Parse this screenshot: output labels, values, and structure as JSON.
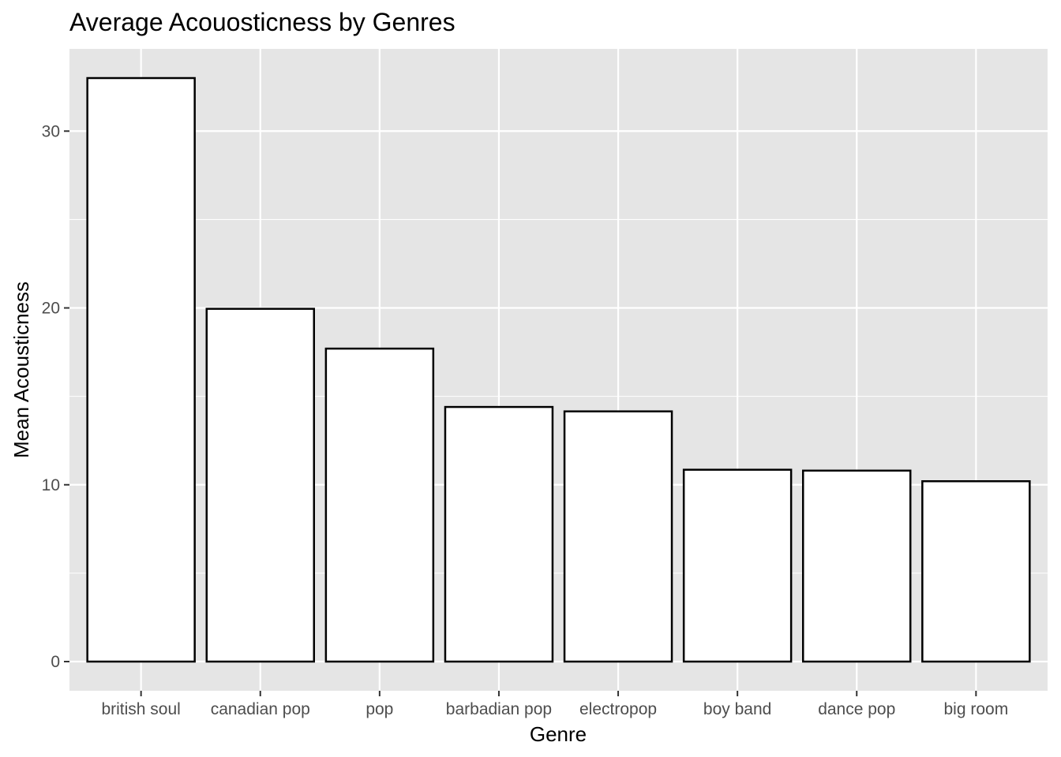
{
  "colors": {
    "panel_background": "#e5e5e5",
    "grid": "#ffffff",
    "bar_fill": "#ffffff",
    "bar_outline": "#000000",
    "tick_text": "#4d4d4d"
  },
  "chart_data": {
    "type": "bar",
    "title": "Average Acouosticness by Genres",
    "xlabel": "Genre",
    "ylabel": "Mean Acousticness",
    "categories": [
      "british soul",
      "canadian pop",
      "pop",
      "barbadian pop",
      "electropop",
      "boy band",
      "dance pop",
      "big room"
    ],
    "values": [
      33.0,
      19.95,
      17.7,
      14.4,
      14.15,
      10.85,
      10.8,
      10.2
    ],
    "ylim": [
      -1.65,
      34.65
    ],
    "yticks": [
      0,
      10,
      20,
      30
    ],
    "ytick_labels": [
      "0",
      "10",
      "20",
      "30"
    ],
    "grid": true,
    "legend": "none"
  }
}
